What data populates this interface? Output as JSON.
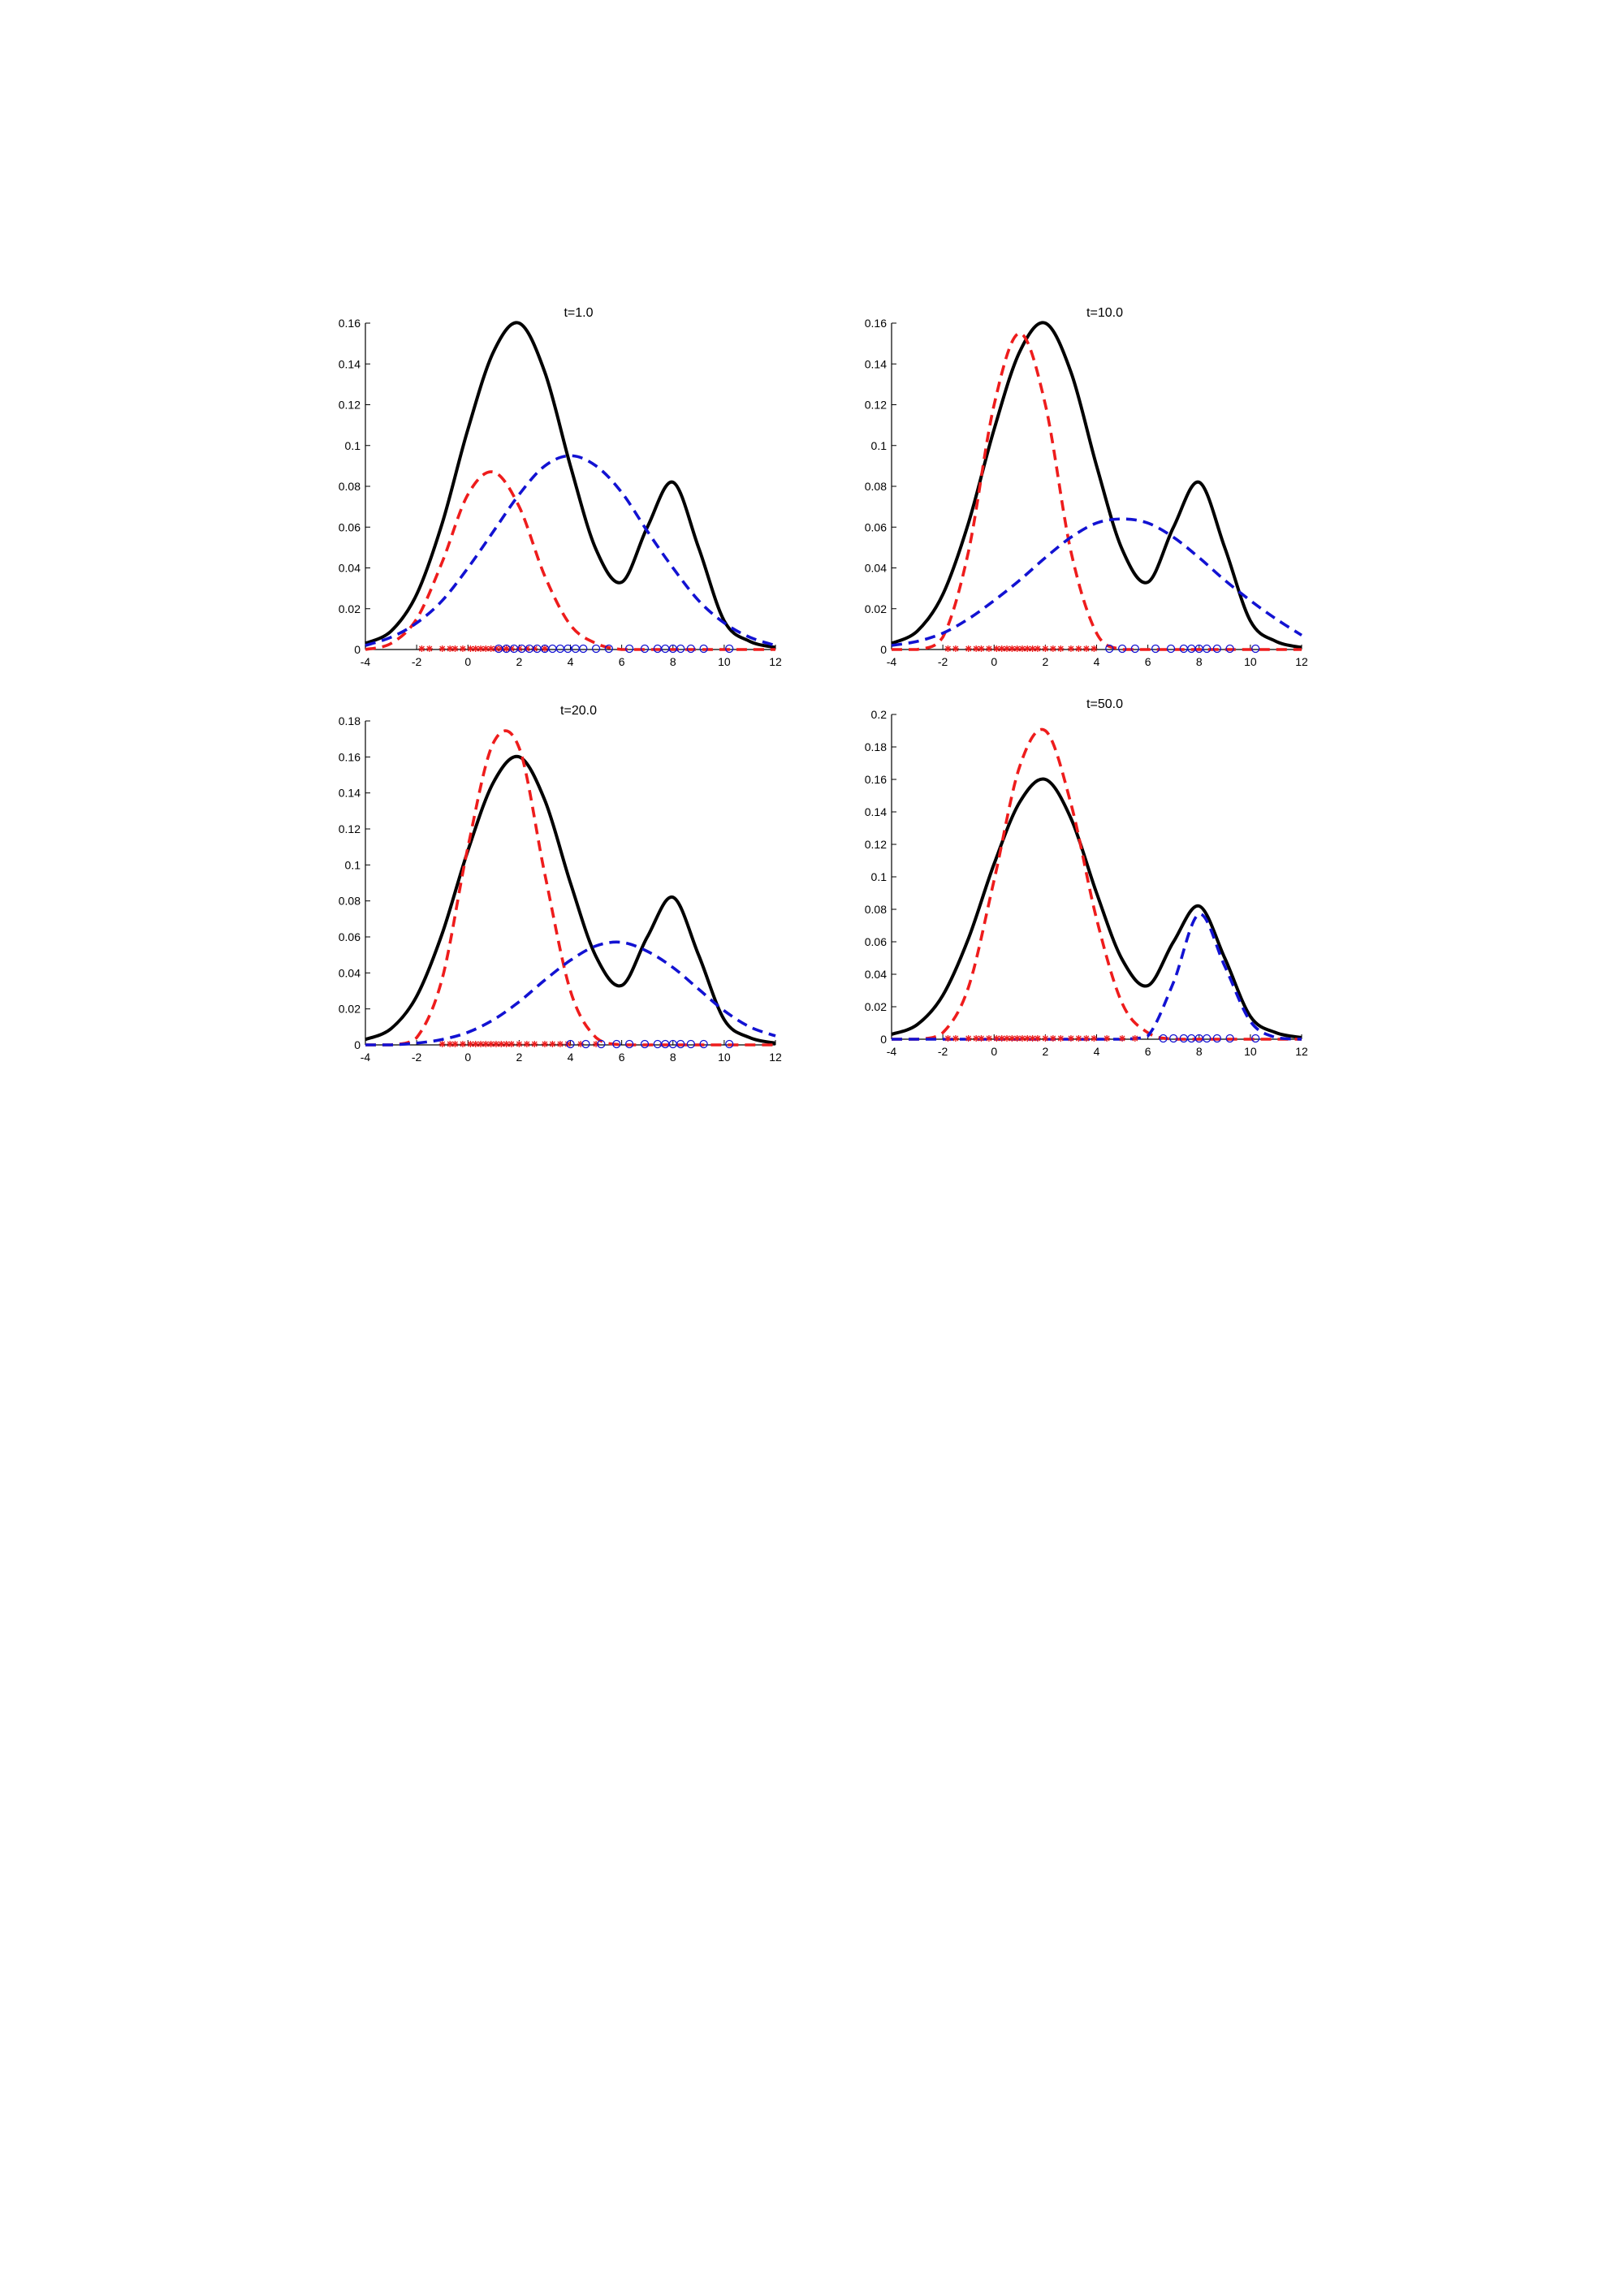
{
  "colors": {
    "total": "#000000",
    "component_1": "#ee1c1c",
    "component_2": "#1212d2"
  },
  "chart_data": [
    {
      "type": "line",
      "title": "t=1.0",
      "xlim": [
        -4,
        12
      ],
      "ylim": [
        0,
        0.16
      ],
      "xticks": [
        -4,
        -2,
        0,
        2,
        4,
        6,
        8,
        10,
        12
      ],
      "xtick_labels": [
        "-4",
        "-2",
        "0",
        "2",
        "4",
        "6",
        "8",
        "10",
        "12"
      ],
      "yticks": [
        0,
        0.02,
        0.04,
        0.06,
        0.08,
        0.1,
        0.12,
        0.14,
        0.16
      ],
      "ytick_labels": [
        "0",
        "0.02",
        "0.04",
        "0.06",
        "0.08",
        "0.1",
        "0.12",
        "0.14",
        "0.16"
      ],
      "grid": false,
      "x": [
        -4,
        -3,
        -2,
        -1,
        0,
        1,
        2,
        3,
        4,
        5,
        6,
        7,
        8,
        9,
        10,
        11,
        12
      ],
      "series": [
        {
          "style": "solid black",
          "values": [
            0.003,
            0.009,
            0.027,
            0.062,
            0.108,
            0.146,
            0.16,
            0.136,
            0.09,
            0.049,
            0.033,
            0.06,
            0.082,
            0.05,
            0.014,
            0.004,
            0.001
          ]
        },
        {
          "style": "dashed red",
          "values": [
            0.0,
            0.003,
            0.015,
            0.043,
            0.076,
            0.087,
            0.07,
            0.036,
            0.012,
            0.003,
            0.0,
            0.0,
            0.0,
            0.0,
            0.0,
            0.0,
            0.0
          ]
        },
        {
          "style": "dashed blue",
          "values": [
            0.002,
            0.006,
            0.013,
            0.024,
            0.04,
            0.058,
            0.076,
            0.09,
            0.095,
            0.09,
            0.077,
            0.058,
            0.04,
            0.024,
            0.013,
            0.006,
            0.002
          ]
        }
      ],
      "samples": [
        {
          "marker": "asterisk",
          "series": "dashed red",
          "x": [
            -1.8,
            -1.5,
            -1.0,
            -0.7,
            -0.5,
            -0.2,
            0.1,
            0.3,
            0.5,
            0.7,
            0.9,
            1.1,
            1.3,
            1.5,
            1.7,
            2.0,
            2.3,
            2.6,
            3.0
          ]
        },
        {
          "marker": "circle",
          "series": "dashed blue",
          "x": [
            1.2,
            1.5,
            1.8,
            2.1,
            2.4,
            2.7,
            3.0,
            3.3,
            3.6,
            3.9,
            4.2,
            4.5,
            5.0,
            5.5,
            6.3,
            6.9,
            7.4,
            7.7,
            8.0,
            8.3,
            8.7,
            9.2,
            10.2
          ]
        }
      ]
    },
    {
      "type": "line",
      "title": "t=10.0",
      "xlim": [
        -4,
        12
      ],
      "ylim": [
        0,
        0.16
      ],
      "xticks": [
        -4,
        -2,
        0,
        2,
        4,
        6,
        8,
        10,
        12
      ],
      "xtick_labels": [
        "-4",
        "-2",
        "0",
        "2",
        "4",
        "6",
        "8",
        "10",
        "12"
      ],
      "yticks": [
        0,
        0.02,
        0.04,
        0.06,
        0.08,
        0.1,
        0.12,
        0.14,
        0.16
      ],
      "ytick_labels": [
        "0",
        "0.02",
        "0.04",
        "0.06",
        "0.08",
        "0.1",
        "0.12",
        "0.14",
        "0.16"
      ],
      "grid": false,
      "x": [
        -4,
        -3,
        -2,
        -1,
        0,
        1,
        2,
        3,
        4,
        5,
        6,
        7,
        8,
        9,
        10,
        11,
        12
      ],
      "series": [
        {
          "style": "solid black",
          "values": [
            0.003,
            0.009,
            0.027,
            0.062,
            0.108,
            0.146,
            0.16,
            0.136,
            0.09,
            0.049,
            0.033,
            0.06,
            0.082,
            0.05,
            0.014,
            0.004,
            0.001
          ]
        },
        {
          "style": "dashed red",
          "values": [
            0.0,
            0.0,
            0.006,
            0.048,
            0.12,
            0.155,
            0.12,
            0.048,
            0.008,
            0.0,
            0.0,
            0.0,
            0.0,
            0.0,
            0.0,
            0.0,
            0.0
          ]
        },
        {
          "style": "dashed blue",
          "values": [
            0.002,
            0.004,
            0.008,
            0.015,
            0.024,
            0.034,
            0.045,
            0.055,
            0.062,
            0.064,
            0.062,
            0.055,
            0.045,
            0.034,
            0.024,
            0.015,
            0.007
          ]
        }
      ],
      "samples": [
        {
          "marker": "asterisk",
          "series": "dashed red",
          "x": [
            -1.8,
            -1.5,
            -1.0,
            -0.7,
            -0.5,
            -0.2,
            0.1,
            0.3,
            0.5,
            0.7,
            0.9,
            1.1,
            1.3,
            1.5,
            1.7,
            2.0,
            2.3,
            2.6,
            3.0,
            3.3,
            3.6,
            3.9
          ]
        },
        {
          "marker": "circle",
          "series": "dashed blue",
          "x": [
            4.5,
            5.0,
            5.5,
            6.3,
            6.9,
            7.4,
            7.7,
            8.0,
            8.3,
            8.7,
            9.2,
            10.2
          ]
        }
      ]
    },
    {
      "type": "line",
      "title": "t=20.0",
      "xlim": [
        -4,
        12
      ],
      "ylim": [
        0,
        0.18
      ],
      "xticks": [
        -4,
        -2,
        0,
        2,
        4,
        6,
        8,
        10,
        12
      ],
      "xtick_labels": [
        "-4",
        "-2",
        "0",
        "2",
        "4",
        "6",
        "8",
        "10",
        "12"
      ],
      "yticks": [
        0,
        0.02,
        0.04,
        0.06,
        0.08,
        0.1,
        0.12,
        0.14,
        0.16,
        0.18
      ],
      "ytick_labels": [
        "0",
        "0.02",
        "0.04",
        "0.06",
        "0.08",
        "0.1",
        "0.12",
        "0.14",
        "0.16",
        "0.18"
      ],
      "grid": false,
      "x": [
        -4,
        -3,
        -2,
        -1,
        0,
        1,
        2,
        3,
        4,
        5,
        6,
        7,
        8,
        9,
        10,
        11,
        12
      ],
      "series": [
        {
          "style": "solid black",
          "values": [
            0.003,
            0.009,
            0.027,
            0.062,
            0.108,
            0.146,
            0.16,
            0.136,
            0.09,
            0.049,
            0.033,
            0.06,
            0.082,
            0.05,
            0.014,
            0.004,
            0.001
          ]
        },
        {
          "style": "dashed red",
          "values": [
            0.0,
            0.0,
            0.004,
            0.037,
            0.11,
            0.168,
            0.165,
            0.095,
            0.03,
            0.004,
            0.0,
            0.0,
            0.0,
            0.0,
            0.0,
            0.0,
            0.0
          ]
        },
        {
          "style": "dashed blue",
          "values": [
            0.0,
            0.0,
            0.001,
            0.003,
            0.007,
            0.014,
            0.024,
            0.036,
            0.047,
            0.055,
            0.057,
            0.052,
            0.043,
            0.031,
            0.019,
            0.01,
            0.005
          ]
        }
      ],
      "samples": [
        {
          "marker": "asterisk",
          "series": "dashed red",
          "x": [
            -1.0,
            -0.7,
            -0.5,
            -0.2,
            0.1,
            0.3,
            0.5,
            0.7,
            0.9,
            1.1,
            1.3,
            1.5,
            1.7,
            2.0,
            2.3,
            2.6,
            3.0,
            3.3,
            3.6,
            3.9,
            4.4,
            5.0
          ]
        },
        {
          "marker": "circle",
          "series": "dashed blue",
          "x": [
            4.0,
            4.6,
            5.2,
            5.8,
            6.3,
            6.9,
            7.4,
            7.7,
            8.0,
            8.3,
            8.7,
            9.2,
            10.2
          ]
        }
      ]
    },
    {
      "type": "line",
      "title": "t=50.0",
      "xlim": [
        -4,
        12
      ],
      "ylim": [
        0,
        0.2
      ],
      "xticks": [
        -4,
        -2,
        0,
        2,
        4,
        6,
        8,
        10,
        12
      ],
      "xtick_labels": [
        "-4",
        "-2",
        "0",
        "2",
        "4",
        "6",
        "8",
        "10",
        "12"
      ],
      "yticks": [
        0,
        0.02,
        0.04,
        0.06,
        0.08,
        0.1,
        0.12,
        0.14,
        0.16,
        0.18,
        0.2
      ],
      "ytick_labels": [
        "0",
        "0.02",
        "0.04",
        "0.06",
        "0.08",
        "0.1",
        "0.12",
        "0.14",
        "0.16",
        "0.18",
        "0.2"
      ],
      "grid": false,
      "x": [
        -4,
        -3,
        -2,
        -1,
        0,
        1,
        2,
        3,
        4,
        5,
        6,
        7,
        8,
        9,
        10,
        11,
        12
      ],
      "series": [
        {
          "style": "solid black",
          "values": [
            0.003,
            0.009,
            0.027,
            0.062,
            0.108,
            0.146,
            0.16,
            0.136,
            0.09,
            0.049,
            0.033,
            0.06,
            0.082,
            0.05,
            0.014,
            0.004,
            0.001
          ]
        },
        {
          "style": "dashed red",
          "values": [
            0.0,
            0.0,
            0.004,
            0.032,
            0.098,
            0.168,
            0.19,
            0.145,
            0.074,
            0.022,
            0.004,
            0.0,
            0.0,
            0.0,
            0.0,
            0.0,
            0.0
          ]
        },
        {
          "style": "dashed blue",
          "values": [
            0.0,
            0.0,
            0.0,
            0.0,
            0.0,
            0.0,
            0.0,
            0.0,
            0.0,
            0.0,
            0.002,
            0.035,
            0.077,
            0.045,
            0.011,
            0.001,
            0.0
          ]
        }
      ],
      "samples": [
        {
          "marker": "asterisk",
          "series": "dashed red",
          "x": [
            -1.8,
            -1.5,
            -1.0,
            -0.7,
            -0.5,
            -0.2,
            0.1,
            0.3,
            0.5,
            0.7,
            0.9,
            1.1,
            1.3,
            1.5,
            1.7,
            2.0,
            2.3,
            2.6,
            3.0,
            3.3,
            3.6,
            3.9,
            4.4,
            5.0,
            5.5
          ]
        },
        {
          "marker": "circle",
          "series": "dashed blue",
          "x": [
            6.6,
            7.0,
            7.4,
            7.7,
            8.0,
            8.3,
            8.7,
            9.2,
            10.2
          ]
        }
      ]
    }
  ]
}
